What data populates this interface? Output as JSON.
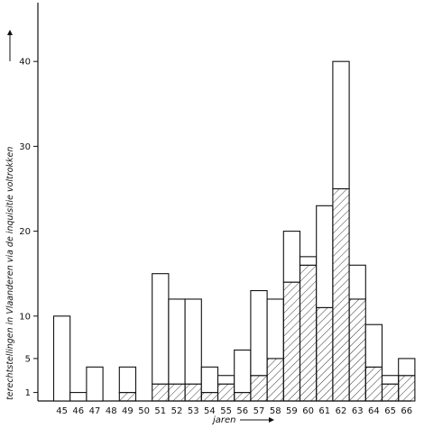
{
  "chart_data": {
    "type": "bar",
    "stacked": true,
    "categories": [
      "45",
      "46",
      "47",
      "48",
      "49",
      "50",
      "51",
      "52",
      "53",
      "54",
      "55",
      "56",
      "57",
      "58",
      "59",
      "60",
      "61",
      "62",
      "63",
      "64",
      "65",
      "66"
    ],
    "series": [
      {
        "pattern": "hatched",
        "values": [
          0,
          0,
          0,
          0,
          1,
          0,
          2,
          2,
          2,
          1,
          2,
          1,
          3,
          5,
          14,
          16,
          11,
          25,
          12,
          4,
          2,
          3
        ]
      },
      {
        "pattern": "open",
        "values": [
          10,
          1,
          4,
          0,
          3,
          0,
          13,
          10,
          10,
          3,
          1,
          5,
          10,
          7,
          6,
          1,
          12,
          15,
          4,
          5,
          1,
          2
        ]
      }
    ],
    "totals": [
      10,
      1,
      4,
      0,
      4,
      0,
      15,
      12,
      12,
      4,
      3,
      6,
      13,
      12,
      20,
      17,
      23,
      40,
      16,
      9,
      3,
      5
    ],
    "xlabel": "jaren",
    "ylabel": "terechtstellingen in Vlaanderen via de inquisitie voltrokken",
    "yticks": [
      1,
      5,
      10,
      20,
      30,
      40
    ],
    "ylim": [
      0,
      46
    ],
    "grid": false,
    "legend": "none"
  }
}
